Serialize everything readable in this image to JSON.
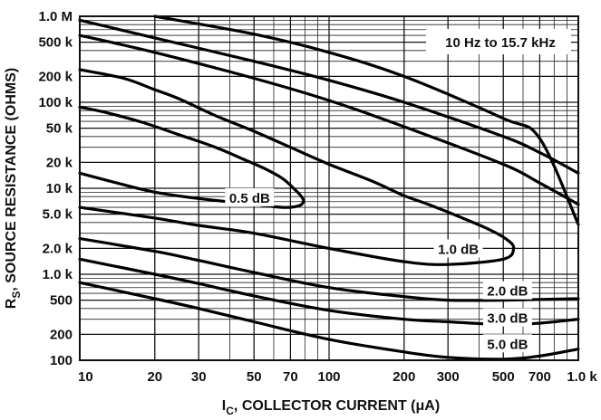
{
  "chart_data": {
    "type": "line",
    "title": "",
    "xlabel_main": "I",
    "xlabel_sub": "C",
    "xlabel_rest": ", COLLECTOR CURRENT (μA)",
    "ylabel_main": "R",
    "ylabel_sub": "S",
    "ylabel_rest": ", SOURCE RESISTANCE (OHMS)",
    "xscale": "log",
    "yscale": "log",
    "xlim": [
      10,
      1000
    ],
    "ylim": [
      100,
      1000000
    ],
    "grid": true,
    "legend": "none",
    "annotation": "10 Hz to 15.7 kHz",
    "x_ticks": [
      {
        "v": 10,
        "label": "10"
      },
      {
        "v": 20,
        "label": "20"
      },
      {
        "v": 30,
        "label": "30"
      },
      {
        "v": 50,
        "label": "50"
      },
      {
        "v": 70,
        "label": "70"
      },
      {
        "v": 100,
        "label": "100"
      },
      {
        "v": 200,
        "label": "200"
      },
      {
        "v": 300,
        "label": "300"
      },
      {
        "v": 500,
        "label": "500"
      },
      {
        "v": 700,
        "label": "700"
      },
      {
        "v": 1000,
        "label": "1.0 k"
      }
    ],
    "y_ticks": [
      {
        "v": 100,
        "label": "100"
      },
      {
        "v": 200,
        "label": "200"
      },
      {
        "v": 500,
        "label": "500"
      },
      {
        "v": 1000,
        "label": "1.0 k"
      },
      {
        "v": 2000,
        "label": "2.0 k"
      },
      {
        "v": 5000,
        "label": "5.0 k"
      },
      {
        "v": 10000,
        "label": "10 k"
      },
      {
        "v": 20000,
        "label": "20 k"
      },
      {
        "v": 50000,
        "label": "50 k"
      },
      {
        "v": 100000,
        "label": "100 k"
      },
      {
        "v": 200000,
        "label": "200 k"
      },
      {
        "v": 500000,
        "label": "500 k"
      },
      {
        "v": 1000000,
        "label": "1.0 M"
      }
    ],
    "series": [
      {
        "label": "0.5 dB",
        "points": [
          [
            10,
            15000
          ],
          [
            15,
            11000
          ],
          [
            20,
            9000
          ],
          [
            30,
            7600
          ],
          [
            50,
            6500
          ],
          [
            65,
            6000
          ],
          [
            75,
            6200
          ],
          [
            79,
            7000
          ],
          [
            77,
            8200
          ],
          [
            72,
            10000
          ],
          [
            65,
            13000
          ],
          [
            55,
            17000
          ],
          [
            45,
            22000
          ],
          [
            35,
            30000
          ],
          [
            25,
            42000
          ],
          [
            18,
            58000
          ],
          [
            13,
            75000
          ],
          [
            10,
            88000
          ]
        ]
      },
      {
        "label": "1.0 dB",
        "points": [
          [
            10,
            6000
          ],
          [
            20,
            4500
          ],
          [
            30,
            3700
          ],
          [
            50,
            3000
          ],
          [
            100,
            2000
          ],
          [
            200,
            1400
          ],
          [
            300,
            1300
          ],
          [
            500,
            1500
          ],
          [
            550,
            2000
          ],
          [
            520,
            2500
          ],
          [
            450,
            3200
          ],
          [
            350,
            4400
          ],
          [
            250,
            6500
          ],
          [
            200,
            8200
          ],
          [
            150,
            12000
          ],
          [
            100,
            19000
          ],
          [
            70,
            30000
          ],
          [
            50,
            46000
          ],
          [
            35,
            70000
          ],
          [
            25,
            110000
          ],
          [
            20,
            140000
          ],
          [
            15,
            190000
          ],
          [
            10,
            240000
          ]
        ]
      },
      {
        "label": "2.0 dB",
        "points": [
          [
            10,
            2600
          ],
          [
            20,
            1850
          ],
          [
            30,
            1450
          ],
          [
            50,
            1050
          ],
          [
            100,
            700
          ],
          [
            200,
            550
          ],
          [
            300,
            500
          ],
          [
            500,
            500
          ],
          [
            700,
            510
          ],
          [
            1000,
            520
          ]
        ]
      },
      {
        "label": "3.0 dB",
        "points": [
          [
            10,
            1500
          ],
          [
            20,
            1000
          ],
          [
            30,
            780
          ],
          [
            50,
            560
          ],
          [
            100,
            380
          ],
          [
            200,
            300
          ],
          [
            300,
            280
          ],
          [
            500,
            260
          ],
          [
            700,
            270
          ],
          [
            1000,
            300
          ]
        ]
      },
      {
        "label": "5.0 dB",
        "points": [
          [
            10,
            800
          ],
          [
            20,
            520
          ],
          [
            30,
            400
          ],
          [
            50,
            280
          ],
          [
            100,
            175
          ],
          [
            200,
            125
          ],
          [
            300,
            108
          ],
          [
            500,
            103
          ],
          [
            700,
            112
          ],
          [
            1000,
            135
          ]
        ]
      },
      {
        "label": "",
        "points": [
          [
            10,
            600000
          ],
          [
            20,
            380000
          ],
          [
            50,
            190000
          ],
          [
            100,
            105000
          ],
          [
            200,
            52000
          ],
          [
            500,
            19000
          ],
          [
            700,
            11500
          ],
          [
            1000,
            6500
          ]
        ]
      },
      {
        "label": "",
        "points": [
          [
            10,
            900000
          ],
          [
            20,
            560000
          ],
          [
            50,
            300000
          ],
          [
            100,
            180000
          ],
          [
            200,
            100000
          ],
          [
            500,
            40000
          ],
          [
            700,
            26000
          ],
          [
            1000,
            15000
          ]
        ]
      },
      {
        "label": "",
        "points": [
          [
            20,
            1000000
          ],
          [
            50,
            620000
          ],
          [
            100,
            380000
          ],
          [
            200,
            200000
          ],
          [
            500,
            65000
          ],
          [
            700,
            38000
          ],
          [
            1000,
            3800
          ]
        ]
      }
    ],
    "curve_labels": [
      {
        "text": "0.5 dB",
        "x": 48,
        "y": 7500
      },
      {
        "text": "1.0 dB",
        "x": 330,
        "y": 1900
      },
      {
        "text": "2.0 dB",
        "x": 520,
        "y": 620
      },
      {
        "text": "3.0 dB",
        "x": 520,
        "y": 300
      },
      {
        "text": "5.0 dB",
        "x": 520,
        "y": 150
      }
    ]
  }
}
